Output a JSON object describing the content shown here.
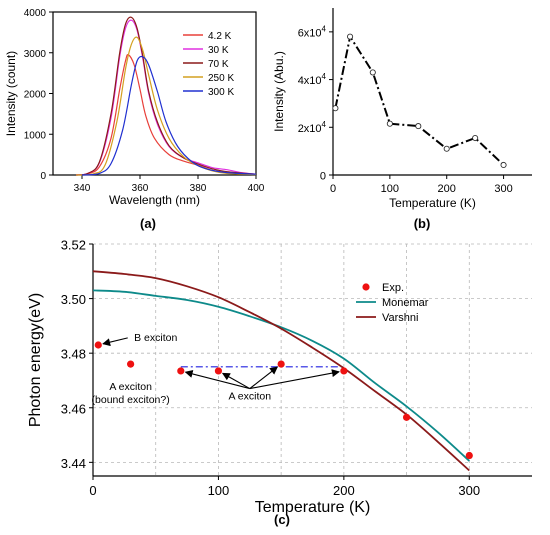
{
  "chart_data": [
    {
      "panel": "(a)",
      "type": "line",
      "xlabel": "Wavelength (nm)",
      "ylabel": "Intensity (count)",
      "xlim": [
        330,
        400
      ],
      "ylim": [
        0,
        4000
      ],
      "x_ticks": [
        340,
        360,
        380,
        400
      ],
      "y_ticks": [
        0,
        1000,
        2000,
        3000,
        4000
      ],
      "legend_position": "top-right",
      "series": [
        {
          "name": "4.2 K",
          "color": "#e8403a",
          "points": [
            [
              338,
              0
            ],
            [
              342,
              30
            ],
            [
              346,
              200
            ],
            [
              350,
              900
            ],
            [
              353,
              2100
            ],
            [
              355,
              2800
            ],
            [
              356,
              2950
            ],
            [
              358,
              2700
            ],
            [
              360,
              2100
            ],
            [
              362,
              1450
            ],
            [
              365,
              900
            ],
            [
              370,
              500
            ],
            [
              375,
              340
            ],
            [
              380,
              240
            ],
            [
              385,
              110
            ],
            [
              390,
              60
            ],
            [
              400,
              20
            ]
          ]
        },
        {
          "name": "30 K",
          "color": "#e030e0",
          "points": [
            [
              338,
              0
            ],
            [
              342,
              40
            ],
            [
              346,
              300
            ],
            [
              350,
              1400
            ],
            [
              353,
              2900
            ],
            [
              355,
              3600
            ],
            [
              357,
              3800
            ],
            [
              359,
              3550
            ],
            [
              361,
              2850
            ],
            [
              363,
              2000
            ],
            [
              366,
              1250
            ],
            [
              370,
              700
            ],
            [
              375,
              420
            ],
            [
              380,
              300
            ],
            [
              385,
              180
            ],
            [
              390,
              130
            ],
            [
              395,
              60
            ],
            [
              400,
              20
            ]
          ]
        },
        {
          "name": "70 K",
          "color": "#8b1a1a",
          "points": [
            [
              338,
              0
            ],
            [
              342,
              40
            ],
            [
              346,
              320
            ],
            [
              350,
              1500
            ],
            [
              353,
              3000
            ],
            [
              355,
              3700
            ],
            [
              357,
              3870
            ],
            [
              359,
              3600
            ],
            [
              361,
              2900
            ],
            [
              363,
              2050
            ],
            [
              366,
              1300
            ],
            [
              370,
              720
            ],
            [
              375,
              420
            ],
            [
              380,
              270
            ],
            [
              385,
              150
            ],
            [
              390,
              80
            ],
            [
              400,
              20
            ]
          ]
        },
        {
          "name": "250 K",
          "color": "#d4a020",
          "points": [
            [
              338,
              0
            ],
            [
              344,
              30
            ],
            [
              348,
              250
            ],
            [
              352,
              1300
            ],
            [
              355,
              2600
            ],
            [
              357,
              3200
            ],
            [
              359,
              3380
            ],
            [
              361,
              3050
            ],
            [
              363,
              2450
            ],
            [
              366,
              1600
            ],
            [
              370,
              900
            ],
            [
              375,
              450
            ],
            [
              380,
              230
            ],
            [
              385,
              100
            ],
            [
              390,
              40
            ],
            [
              400,
              10
            ]
          ]
        },
        {
          "name": "300 K",
          "color": "#2030d0",
          "points": [
            [
              340,
              0
            ],
            [
              346,
              40
            ],
            [
              350,
              280
            ],
            [
              354,
              1100
            ],
            [
              357,
              2200
            ],
            [
              359,
              2800
            ],
            [
              361,
              2900
            ],
            [
              363,
              2700
            ],
            [
              366,
              2050
            ],
            [
              369,
              1300
            ],
            [
              373,
              700
            ],
            [
              378,
              320
            ],
            [
              383,
              150
            ],
            [
              390,
              60
            ],
            [
              400,
              20
            ]
          ]
        }
      ]
    },
    {
      "panel": "(b)",
      "type": "line",
      "xlabel": "Temperature (K)",
      "ylabel": "Intensity (Abu.)",
      "xlim": [
        0,
        350
      ],
      "ylim": [
        0,
        70000
      ],
      "x_ticks": [
        0,
        100,
        200,
        300
      ],
      "y_ticks": [
        0,
        20000,
        40000,
        60000
      ],
      "y_tick_labels": [
        {
          "base": "0",
          "exp": ""
        },
        {
          "base": "2x10",
          "exp": "4"
        },
        {
          "base": "4x10",
          "exp": "4"
        },
        {
          "base": "6x10",
          "exp": "4"
        }
      ],
      "line_style": "dash-dot",
      "marker": "open-circle",
      "x": [
        4.2,
        30,
        70,
        100,
        150,
        200,
        250,
        300
      ],
      "y": [
        28000,
        58000,
        43000,
        21500,
        20500,
        11000,
        15500,
        4200
      ]
    },
    {
      "panel": "(c)",
      "type": "line",
      "xlabel": "Temperature (K)",
      "ylabel": "Photon energy(eV)",
      "xlim": [
        0,
        350
      ],
      "ylim": [
        3.435,
        3.52
      ],
      "x_ticks": [
        0,
        100,
        200,
        300
      ],
      "y_ticks": [
        3.44,
        3.46,
        3.48,
        3.5,
        3.52
      ],
      "y_tick_labels": [
        "3.44",
        "3.46",
        "3.48",
        "3.50",
        "3.52"
      ],
      "grid": true,
      "legend_position": "top-right",
      "experimental": {
        "name": "Exp.",
        "color": "#ee1111",
        "x": [
          4.2,
          30,
          70,
          100,
          150,
          200,
          250,
          300
        ],
        "y": [
          3.483,
          3.476,
          3.4735,
          3.4735,
          3.476,
          3.4735,
          3.4565,
          3.4425
        ]
      },
      "models": [
        {
          "name": "Monemar",
          "color": "#0d8a8a",
          "x": [
            0,
            25,
            50,
            75,
            100,
            125,
            150,
            175,
            200,
            225,
            250,
            275,
            300
          ],
          "y": [
            3.503,
            3.5025,
            3.501,
            3.4995,
            3.497,
            3.4935,
            3.4895,
            3.4845,
            3.478,
            3.469,
            3.4605,
            3.451,
            3.4405
          ]
        },
        {
          "name": "Varshni",
          "color": "#8b1a1a",
          "x": [
            0,
            25,
            50,
            75,
            100,
            125,
            150,
            175,
            200,
            225,
            250,
            275,
            300
          ],
          "y": [
            3.51,
            3.509,
            3.5075,
            3.5045,
            3.5005,
            3.495,
            3.489,
            3.482,
            3.4745,
            3.466,
            3.4575,
            3.4475,
            3.437
          ]
        }
      ],
      "reference_line": {
        "x": [
          70,
          200
        ],
        "y": 3.475,
        "color": "#2020e0",
        "style": "dash-dot"
      },
      "annotations": [
        {
          "id": "b",
          "text": [
            "B exciton"
          ],
          "target": [
            [
              4.2,
              3.483
            ]
          ],
          "text_at": [
            50,
            3.4845
          ]
        },
        {
          "id": "a_bound",
          "text": [
            "A exciton",
            "(bound exciton?)"
          ],
          "text_at": [
            30,
            3.4665
          ]
        },
        {
          "id": "a",
          "text": [
            "A exciton"
          ],
          "target": [
            [
              70,
              3.4735
            ],
            [
              100,
              3.4735
            ],
            [
              150,
              3.476
            ],
            [
              200,
              3.4735
            ]
          ],
          "text_at": [
            125,
            3.463
          ]
        }
      ]
    }
  ],
  "captions": {
    "a": "(a)",
    "b": "(b)",
    "c": "(c)"
  }
}
